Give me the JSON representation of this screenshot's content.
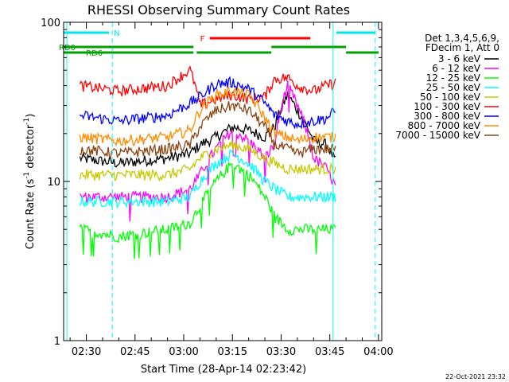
{
  "chart_data": {
    "type": "line",
    "title": "RHESSI Observing Summary Count Rates",
    "xlabel": "Start Time (28-Apr-14 02:23:42)",
    "ylabel_main": "Count Rate (s",
    "ylabel_sup1": "-1",
    "ylabel_mid": " detector",
    "ylabel_sup2": "-1",
    "ylabel_end": ")",
    "timestamp": "22-Oct-2021 23:32",
    "xlim": [
      "02:23",
      "04:01"
    ],
    "ylim": [
      1,
      100
    ],
    "y_scale": "log",
    "x_ticks": [
      {
        "t": "02:30",
        "label": "02:30"
      },
      {
        "t": "02:45",
        "label": "02:45"
      },
      {
        "t": "03:00",
        "label": "03:00"
      },
      {
        "t": "03:15",
        "label": "03:15"
      },
      {
        "t": "03:30",
        "label": "03:30"
      },
      {
        "t": "03:45",
        "label": "03:45"
      },
      {
        "t": "04:00",
        "label": "04:00"
      }
    ],
    "y_ticks": [
      {
        "value": 1,
        "label": "1"
      },
      {
        "value": 10,
        "label": "10"
      },
      {
        "value": 100,
        "label": "100"
      }
    ],
    "legend_header": [
      "Det 1,3,4,5,6,9,",
      "FDecim 1, Att 0"
    ],
    "legend_position": "right",
    "x_times": [
      "02:28",
      "02:40",
      "02:55",
      "03:02",
      "03:05",
      "03:10",
      "03:15",
      "03:20",
      "03:25",
      "03:28",
      "03:32",
      "03:35",
      "03:40",
      "03:44",
      "03:47"
    ],
    "series": [
      {
        "name": "3 - 6 keV",
        "color": "#000000",
        "values": [
          14,
          13,
          14,
          15,
          17,
          19,
          22,
          21,
          19,
          22,
          35,
          28,
          18,
          17,
          13
        ]
      },
      {
        "name": "6 - 12 keV",
        "color": "#ff00ff",
        "values": [
          8,
          8,
          8,
          9,
          11,
          16,
          21,
          18,
          14,
          17,
          40,
          30,
          14,
          12,
          9
        ]
      },
      {
        "name": "12 - 25 keV",
        "color": "#00ff00",
        "values": [
          5,
          4.5,
          5,
          5.5,
          7,
          10,
          13,
          11,
          8,
          6,
          5,
          5,
          5,
          5,
          5
        ]
      },
      {
        "name": "25 - 50 keV",
        "color": "#00ffff",
        "values": [
          7.5,
          7.5,
          7.5,
          8,
          10,
          13,
          15,
          13,
          10,
          9,
          8,
          8,
          8,
          8,
          8
        ]
      },
      {
        "name": "50 - 100 keV",
        "color": "#c8c800",
        "values": [
          11,
          11,
          11,
          12,
          14,
          16,
          17,
          16,
          14,
          13,
          12,
          12,
          12,
          12,
          12
        ]
      },
      {
        "name": "100 - 300 keV",
        "color": "#ff0000",
        "values": [
          40,
          37,
          40,
          50,
          30,
          33,
          35,
          33,
          34,
          44,
          45,
          40,
          37,
          40,
          42
        ]
      },
      {
        "name": "300 - 800 keV",
        "color": "#0000ff",
        "values": [
          26,
          24,
          26,
          31,
          34,
          41,
          42,
          38,
          31,
          26,
          24,
          23,
          24,
          25,
          28
        ]
      },
      {
        "name": "800 - 7000 keV",
        "color": "#ff8c00",
        "values": [
          19,
          18,
          19,
          21,
          28,
          35,
          37,
          35,
          25,
          20,
          19,
          18,
          19,
          19,
          19
        ]
      },
      {
        "name": "7000 - 15000 keV",
        "color": "#8b4513",
        "values": [
          16,
          15,
          16,
          17,
          22,
          28,
          30,
          28,
          22,
          17,
          16,
          15,
          16,
          16,
          16
        ]
      }
    ],
    "state_bars": [
      {
        "label": "N",
        "color": "#00e5e5",
        "start": "02:23",
        "end": "02:37",
        "level": 1
      },
      {
        "label": "",
        "color": "#00e5e5",
        "start": "03:47",
        "end": "03:59",
        "level": 1
      },
      {
        "label": "F",
        "color": "#ff0000",
        "start": "03:08",
        "end": "03:39",
        "level": 2
      },
      {
        "label": "RD0",
        "color": "#00a000",
        "start": "02:23",
        "end": "03:03",
        "level": 3
      },
      {
        "label": "",
        "color": "#00a000",
        "start": "03:27",
        "end": "03:50",
        "level": 3
      },
      {
        "label": "RD6",
        "color": "#00a000",
        "start": "02:23",
        "end": "03:03",
        "level": 4
      },
      {
        "label": "",
        "color": "#00a000",
        "start": "03:04",
        "end": "03:27",
        "level": 4
      },
      {
        "label": "",
        "color": "#00a000",
        "start": "03:50",
        "end": "04:00",
        "level": 4
      }
    ],
    "vertical_lines": [
      {
        "t": "02:24",
        "color": "#00ffff",
        "style": "solid"
      },
      {
        "t": "02:38",
        "color": "#00ffff",
        "style": "dashed"
      },
      {
        "t": "03:46",
        "color": "#00ffff",
        "style": "solid"
      },
      {
        "t": "03:59",
        "color": "#00ffff",
        "style": "dashed"
      }
    ],
    "data_gaps": [
      [
        "02:23",
        "02:27"
      ],
      [
        "03:48",
        "04:01"
      ]
    ]
  }
}
